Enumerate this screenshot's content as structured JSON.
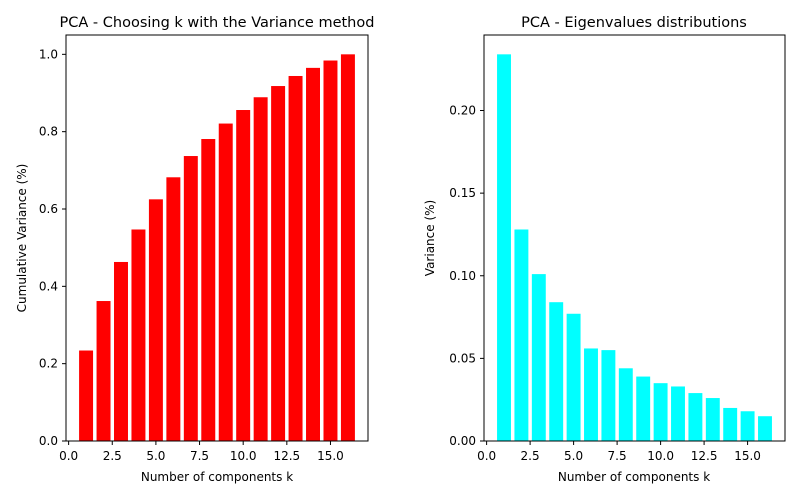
{
  "chart_data": [
    {
      "type": "bar",
      "title": "PCA - Choosing k with the Variance method",
      "xlabel": "Number of components k",
      "ylabel": "Cumulative Variance (%)",
      "x": [
        1,
        2,
        3,
        4,
        5,
        6,
        7,
        8,
        9,
        10,
        11,
        12,
        13,
        14,
        15,
        16
      ],
      "values": [
        0.234,
        0.362,
        0.463,
        0.547,
        0.625,
        0.682,
        0.737,
        0.781,
        0.821,
        0.856,
        0.889,
        0.918,
        0.944,
        0.965,
        0.984,
        1.0
      ],
      "color": "#ff0000",
      "xlim": [
        -0.15,
        17.15
      ],
      "ylim": [
        0,
        1.05
      ],
      "xticks": [
        "0.0",
        "2.5",
        "5.0",
        "7.5",
        "10.0",
        "12.5",
        "15.0"
      ],
      "yticks": [
        "0.0",
        "0.2",
        "0.4",
        "0.6",
        "0.8",
        "1.0"
      ],
      "grid": false
    },
    {
      "type": "bar",
      "title": "PCA - Eigenvalues distributions",
      "xlabel": "Number of components k",
      "ylabel": "Variance (%)",
      "x": [
        1,
        2,
        3,
        4,
        5,
        6,
        7,
        8,
        9,
        10,
        11,
        12,
        13,
        14,
        15,
        16
      ],
      "values": [
        0.234,
        0.128,
        0.101,
        0.084,
        0.077,
        0.056,
        0.055,
        0.044,
        0.039,
        0.035,
        0.033,
        0.029,
        0.026,
        0.02,
        0.018,
        0.015
      ],
      "color": "#00ffff",
      "xlim": [
        -0.15,
        17.15
      ],
      "ylim": [
        0,
        0.2457
      ],
      "xticks": [
        "0.0",
        "2.5",
        "5.0",
        "7.5",
        "10.0",
        "12.5",
        "15.0"
      ],
      "yticks": [
        "0.00",
        "0.05",
        "0.10",
        "0.15",
        "0.20"
      ],
      "grid": false
    }
  ]
}
